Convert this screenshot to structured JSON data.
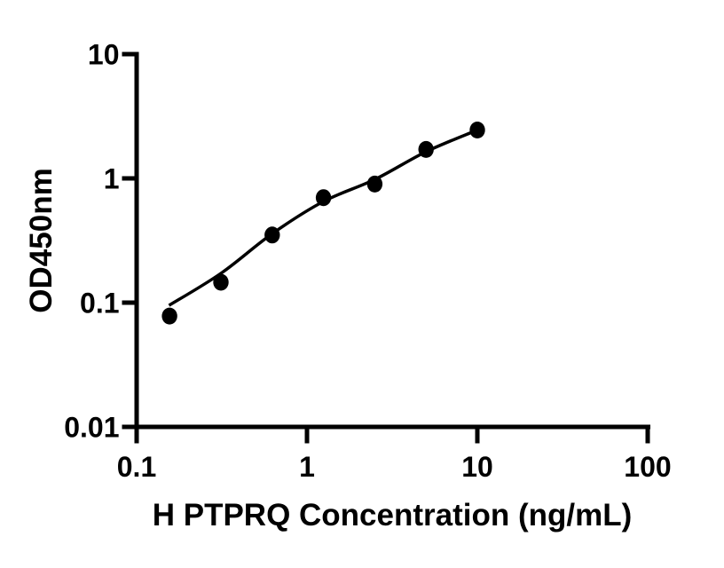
{
  "figure": {
    "background_color": "#ffffff",
    "foreground_color": "#000000"
  },
  "chart_data": {
    "type": "scatter",
    "title": "",
    "xlabel": "H PTPRQ Concentration (ng/mL)",
    "ylabel": "OD450nm",
    "x_scale": "log10",
    "y_scale": "log10",
    "xlim": [
      0.1,
      100
    ],
    "ylim": [
      0.01,
      10
    ],
    "x_tick_values": [
      0.1,
      1,
      10,
      100
    ],
    "x_tick_labels": [
      "0.1",
      "1",
      "10",
      "100"
    ],
    "y_tick_values": [
      0.01,
      0.1,
      1,
      10
    ],
    "y_tick_labels": [
      "0.01",
      "0.1",
      "1",
      "10"
    ],
    "grid": false,
    "legend": "none",
    "marker_color": "#000000",
    "line_color": "#000000",
    "series": [
      {
        "name": "standard points",
        "type": "scatter",
        "x": [
          0.156,
          0.3125,
          0.625,
          1.25,
          2.5,
          5,
          10
        ],
        "y": [
          0.078,
          0.146,
          0.35,
          0.7,
          0.9,
          1.71,
          2.45
        ]
      },
      {
        "name": "fitted curve",
        "type": "line",
        "x": [
          0.155,
          0.3125,
          0.625,
          1.25,
          2.5,
          5,
          10
        ],
        "y": [
          0.095,
          0.172,
          0.359,
          0.652,
          0.98,
          1.64,
          2.45
        ]
      }
    ]
  }
}
